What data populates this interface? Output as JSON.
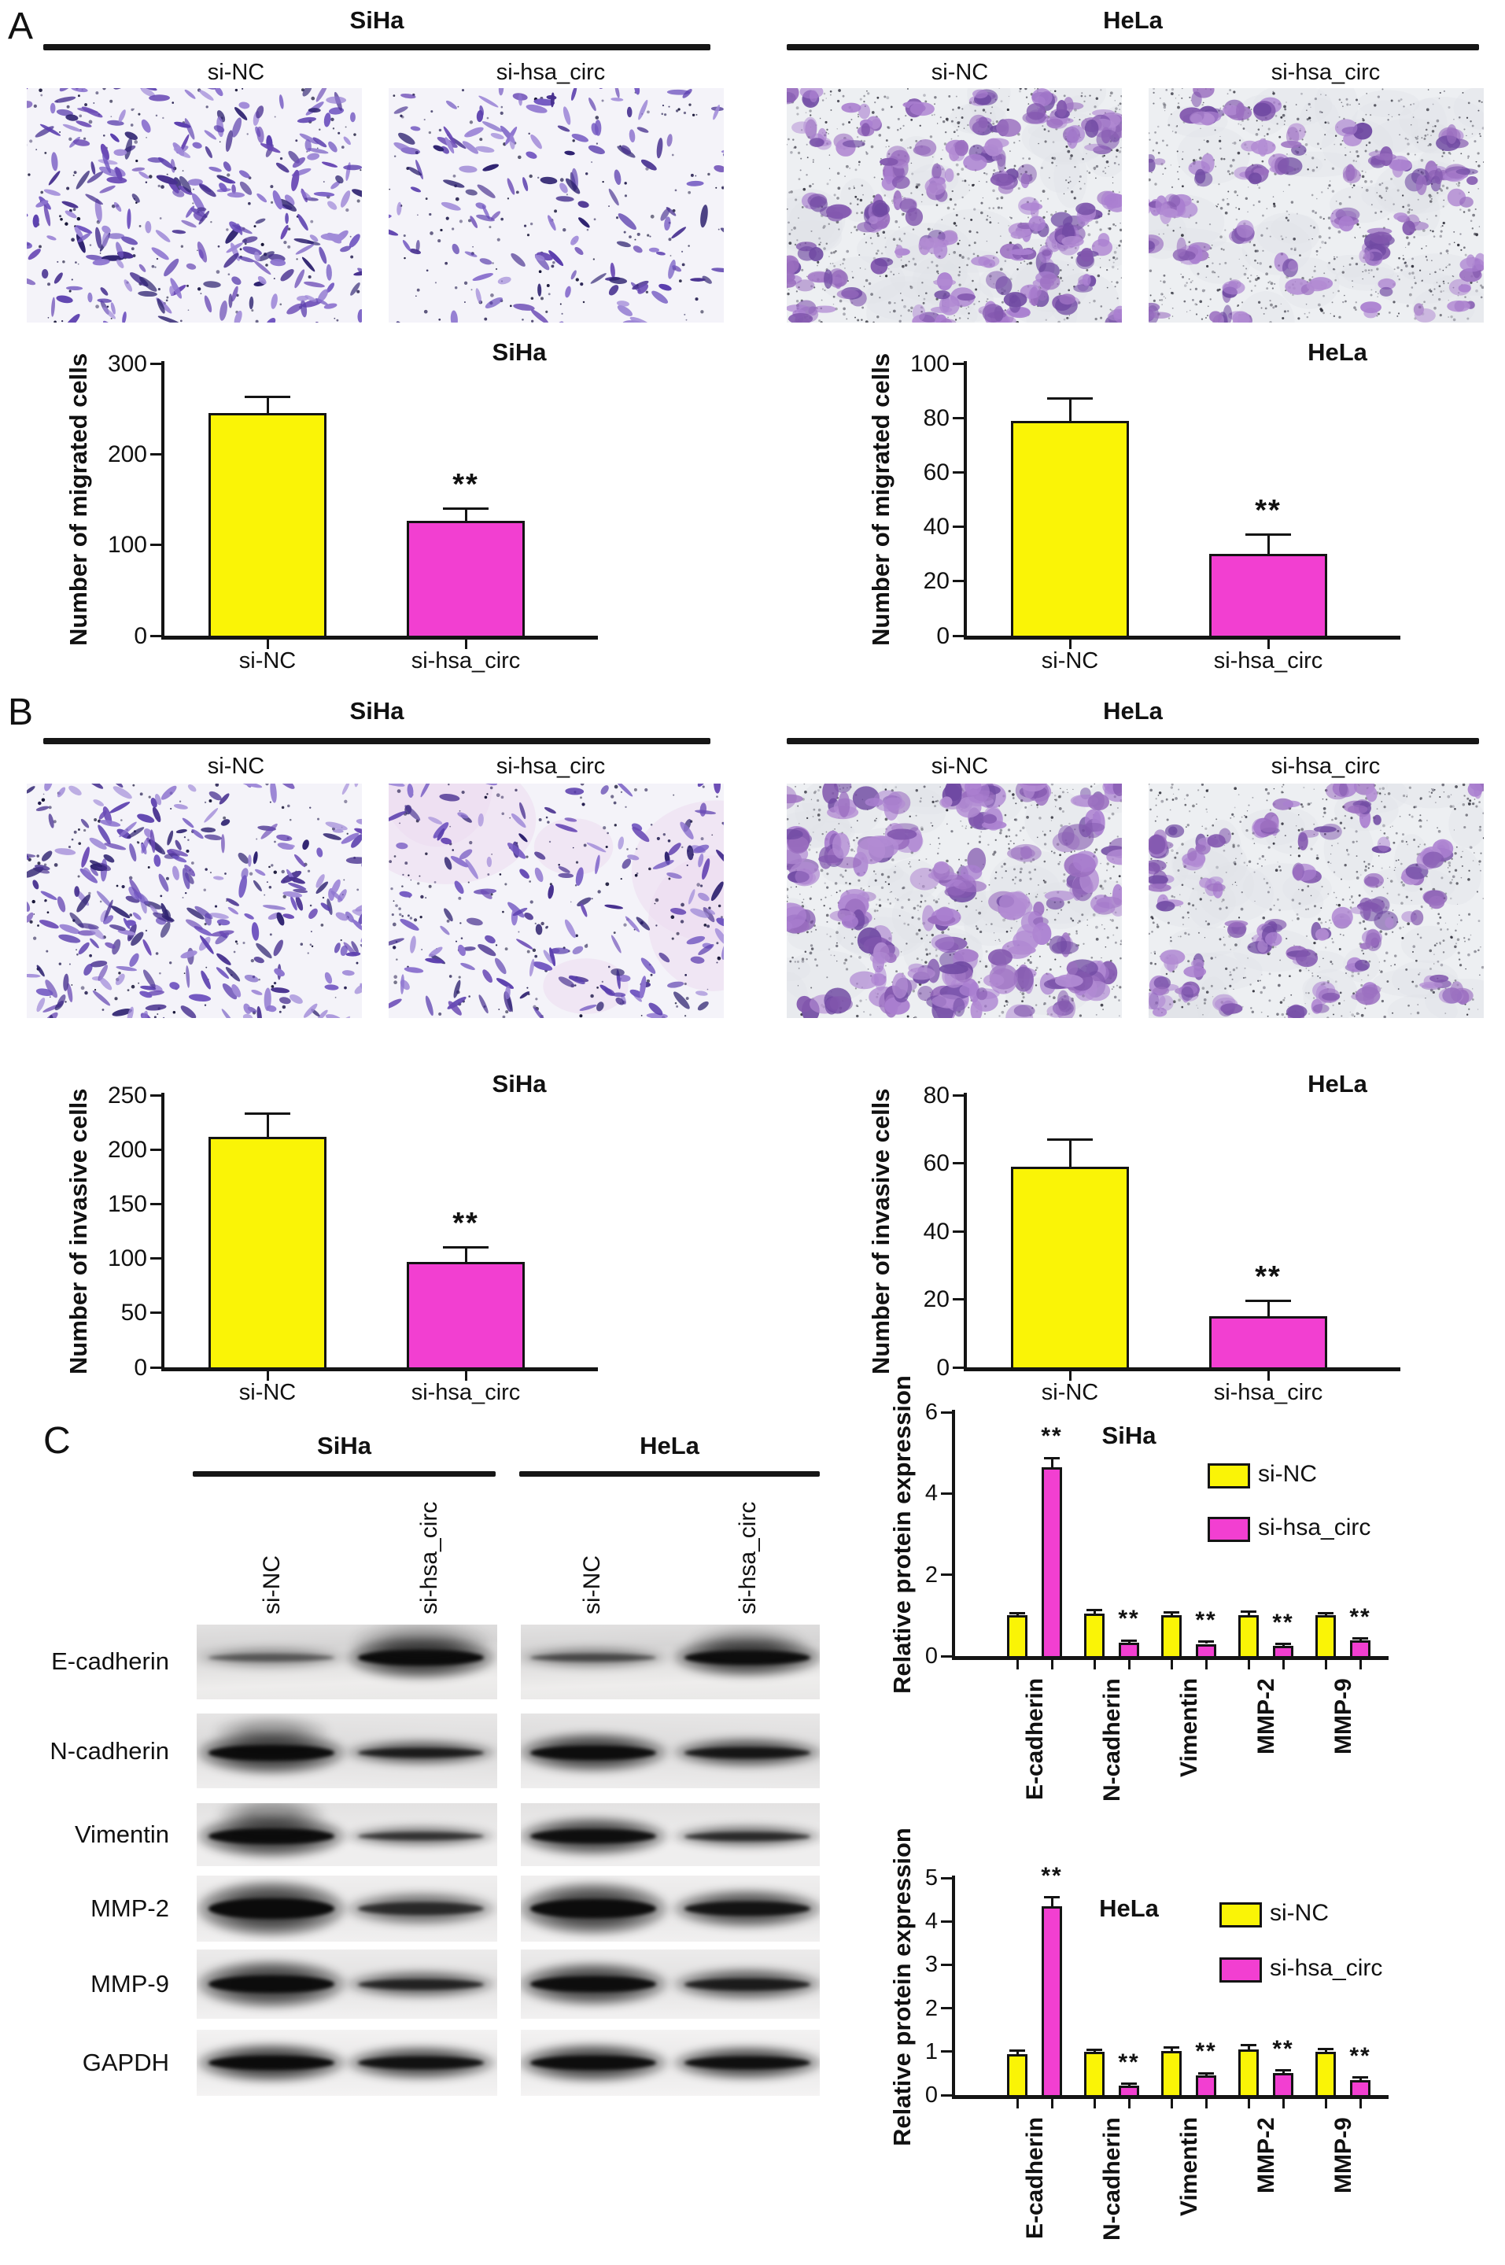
{
  "figure": {
    "panel_a_label": "A",
    "panel_b_label": "B",
    "panel_c_label": "C",
    "sig_marker": "**"
  },
  "colors": {
    "si_nc": "#FAF406",
    "si_hsa_circ": "#F23FD1",
    "bar_border": "#141414",
    "axis": "#141414",
    "cell_purple": "#7257c1",
    "blot_band": "#0a0a0a"
  },
  "panel_a": {
    "groups": [
      {
        "cell_line": "SiHa",
        "conditions": [
          "si-NC",
          "si-hsa_circ"
        ]
      },
      {
        "cell_line": "HeLa",
        "conditions": [
          "si-NC",
          "si-hsa_circ"
        ]
      }
    ]
  },
  "panel_b": {
    "groups": [
      {
        "cell_line": "SiHa",
        "conditions": [
          "si-NC",
          "si-hsa_circ"
        ]
      },
      {
        "cell_line": "HeLa",
        "conditions": [
          "si-NC",
          "si-hsa_circ"
        ]
      }
    ]
  },
  "panel_c": {
    "blot_groups": [
      {
        "cell_line": "SiHa",
        "lanes": [
          "si-NC",
          "si-hsa_circ"
        ]
      },
      {
        "cell_line": "HeLa",
        "lanes": [
          "si-NC",
          "si-hsa_circ"
        ]
      }
    ],
    "rows": [
      {
        "protein": "E-cadherin",
        "siha": [
          [
            0.45,
            10
          ],
          [
            0.97,
            20
          ]
        ],
        "hela": [
          [
            0.52,
            10
          ],
          [
            0.95,
            18
          ]
        ]
      },
      {
        "protein": "N-cadherin",
        "siha": [
          [
            0.97,
            20
          ],
          [
            0.8,
            12
          ]
        ],
        "hela": [
          [
            0.95,
            18
          ],
          [
            0.85,
            14
          ]
        ]
      },
      {
        "protein": "Vimentin",
        "siha": [
          [
            0.96,
            20
          ],
          [
            0.65,
            10
          ]
        ],
        "hela": [
          [
            0.93,
            18
          ],
          [
            0.7,
            11
          ]
        ]
      },
      {
        "protein": "MMP-2",
        "siha": [
          [
            0.98,
            26
          ],
          [
            0.7,
            16
          ]
        ],
        "hela": [
          [
            0.96,
            24
          ],
          [
            0.88,
            18
          ]
        ]
      },
      {
        "protein": "MMP-9",
        "siha": [
          [
            0.96,
            22
          ],
          [
            0.75,
            13
          ]
        ],
        "hela": [
          [
            0.94,
            20
          ],
          [
            0.8,
            15
          ]
        ]
      },
      {
        "protein": "GAPDH",
        "siha": [
          [
            0.97,
            18
          ],
          [
            0.9,
            16
          ]
        ],
        "hela": [
          [
            0.95,
            18
          ],
          [
            0.92,
            16
          ]
        ]
      }
    ]
  },
  "chart_data": [
    {
      "id": "siha_migration",
      "type": "bar",
      "title": "SiHa",
      "ylabel": "Number of migrated cells",
      "xlabel": "",
      "ylim": [
        0,
        300
      ],
      "yticks": [
        0,
        100,
        200,
        300
      ],
      "categories": [
        "si-NC",
        "si-hsa_circ"
      ],
      "values": [
        245,
        127
      ],
      "errors": [
        18,
        13
      ],
      "sig": [
        "",
        "**"
      ],
      "bar_colors": [
        "si_nc",
        "si_hsa_circ"
      ],
      "grid": false
    },
    {
      "id": "hela_migration",
      "type": "bar",
      "title": "HeLa",
      "ylabel": "Number of migrated cells",
      "xlabel": "",
      "ylim": [
        0,
        100
      ],
      "yticks": [
        0,
        20,
        40,
        60,
        80,
        100
      ],
      "categories": [
        "si-NC",
        "si-hsa_circ"
      ],
      "values": [
        79,
        30
      ],
      "errors": [
        8,
        7
      ],
      "sig": [
        "",
        "**"
      ],
      "bar_colors": [
        "si_nc",
        "si_hsa_circ"
      ],
      "grid": false
    },
    {
      "id": "siha_invasion",
      "type": "bar",
      "title": "SiHa",
      "ylabel": "Number of invasive cells",
      "xlabel": "",
      "ylim": [
        0,
        250
      ],
      "yticks": [
        0,
        50,
        100,
        150,
        200,
        250
      ],
      "categories": [
        "si-NC",
        "si-hsa_circ"
      ],
      "values": [
        212,
        97
      ],
      "errors": [
        21,
        13
      ],
      "sig": [
        "",
        "**"
      ],
      "bar_colors": [
        "si_nc",
        "si_hsa_circ"
      ],
      "grid": false
    },
    {
      "id": "hela_invasion",
      "type": "bar",
      "title": "HeLa",
      "ylabel": "Number of invasive cells",
      "xlabel": "",
      "ylim": [
        0,
        80
      ],
      "yticks": [
        0,
        20,
        40,
        60,
        80
      ],
      "categories": [
        "si-NC",
        "si-hsa_circ"
      ],
      "values": [
        59,
        15
      ],
      "errors": [
        8,
        4.5
      ],
      "sig": [
        "",
        "**"
      ],
      "bar_colors": [
        "si_nc",
        "si_hsa_circ"
      ],
      "grid": false
    },
    {
      "id": "siha_protein",
      "type": "grouped_bar",
      "title": "SiHa",
      "ylabel": "Relative protein expression",
      "xlabel": "",
      "ylim": [
        0,
        6
      ],
      "yticks": [
        0,
        2,
        4,
        6
      ],
      "categories": [
        "E-cadherin",
        "N-cadherin",
        "Vimentin",
        "MMP-2",
        "MMP-9"
      ],
      "legend_position": "upper-right",
      "grid": false,
      "series": [
        {
          "name": "si-NC",
          "color": "si_nc",
          "values": [
            1.0,
            1.05,
            1.0,
            1.0,
            1.0
          ],
          "errors": [
            0.06,
            0.08,
            0.08,
            0.09,
            0.06
          ],
          "sig": [
            "",
            "",
            "",
            "",
            ""
          ]
        },
        {
          "name": "si-hsa_circ",
          "color": "si_hsa_circ",
          "values": [
            4.65,
            0.33,
            0.3,
            0.25,
            0.38
          ],
          "errors": [
            0.22,
            0.05,
            0.05,
            0.05,
            0.05
          ],
          "sig": [
            "**",
            "**",
            "**",
            "**",
            "**"
          ]
        }
      ]
    },
    {
      "id": "hela_protein",
      "type": "grouped_bar",
      "title": "HeLa",
      "ylabel": "Relative protein expression",
      "xlabel": "",
      "ylim": [
        0,
        5
      ],
      "yticks": [
        0,
        1,
        2,
        3,
        4,
        5
      ],
      "categories": [
        "E-cadherin",
        "N-cadherin",
        "Vimentin",
        "MMP-2",
        "MMP-9"
      ],
      "legend_position": "upper-right",
      "grid": false,
      "series": [
        {
          "name": "si-NC",
          "color": "si_nc",
          "values": [
            0.95,
            1.0,
            1.02,
            1.05,
            1.0
          ],
          "errors": [
            0.07,
            0.04,
            0.08,
            0.1,
            0.06
          ],
          "sig": [
            "",
            "",
            "",
            "",
            ""
          ]
        },
        {
          "name": "si-hsa_circ",
          "color": "si_hsa_circ",
          "values": [
            4.35,
            0.22,
            0.45,
            0.5,
            0.35
          ],
          "errors": [
            0.2,
            0.04,
            0.05,
            0.07,
            0.05
          ],
          "sig": [
            "**",
            "**",
            "**",
            "**",
            "**"
          ]
        }
      ]
    }
  ]
}
